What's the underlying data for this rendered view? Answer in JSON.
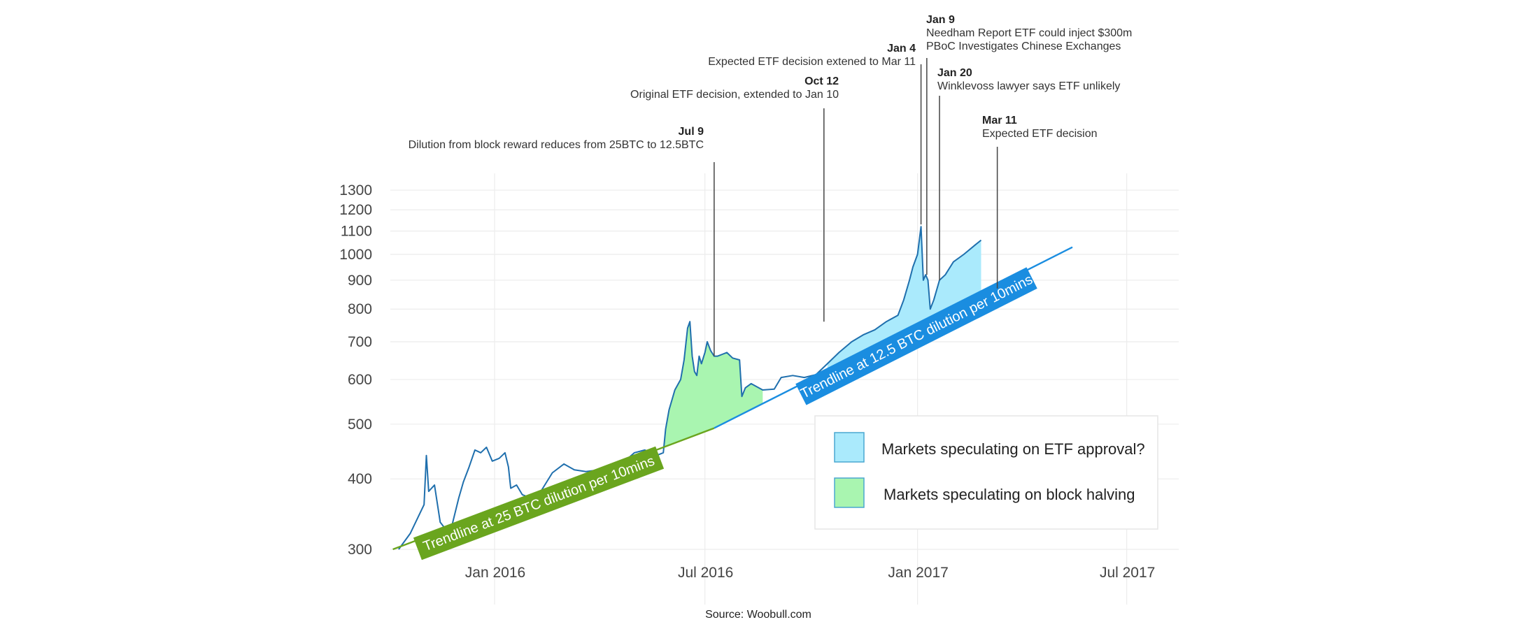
{
  "chart_data": {
    "type": "line",
    "title": "",
    "xlabel": "",
    "ylabel": "",
    "y_scale": "log",
    "xlim": [
      "2015-10-01",
      "2017-08-15"
    ],
    "ylim": [
      295,
      1400
    ],
    "grid": true,
    "x_ticks": [
      {
        "date": "2016-01-01",
        "label": "Jan 2016"
      },
      {
        "date": "2016-07-01",
        "label": "Jul 2016"
      },
      {
        "date": "2017-01-01",
        "label": "Jan 2017"
      },
      {
        "date": "2017-07-01",
        "label": "Jul 2017"
      }
    ],
    "y_ticks": [
      300,
      400,
      500,
      600,
      700,
      800,
      900,
      1000,
      1100,
      1200,
      1300
    ],
    "series": [
      {
        "role": "price",
        "color": "#1f6fad",
        "points": [
          [
            "2015-10-10",
            300
          ],
          [
            "2015-10-20",
            320
          ],
          [
            "2015-11-01",
            360
          ],
          [
            "2015-11-03",
            440
          ],
          [
            "2015-11-05",
            380
          ],
          [
            "2015-11-10",
            390
          ],
          [
            "2015-11-15",
            335
          ],
          [
            "2015-11-20",
            325
          ],
          [
            "2015-11-25",
            330
          ],
          [
            "2015-12-01",
            370
          ],
          [
            "2015-12-05",
            395
          ],
          [
            "2015-12-10",
            420
          ],
          [
            "2015-12-15",
            450
          ],
          [
            "2015-12-20",
            445
          ],
          [
            "2015-12-25",
            455
          ],
          [
            "2015-12-30",
            430
          ],
          [
            "2016-01-05",
            435
          ],
          [
            "2016-01-10",
            445
          ],
          [
            "2016-01-13",
            420
          ],
          [
            "2016-01-15",
            385
          ],
          [
            "2016-01-20",
            390
          ],
          [
            "2016-01-25",
            375
          ],
          [
            "2016-02-01",
            370
          ],
          [
            "2016-02-10",
            380
          ],
          [
            "2016-02-20",
            410
          ],
          [
            "2016-03-01",
            425
          ],
          [
            "2016-03-10",
            415
          ],
          [
            "2016-03-20",
            412
          ],
          [
            "2016-04-01",
            415
          ],
          [
            "2016-04-10",
            420
          ],
          [
            "2016-04-20",
            425
          ],
          [
            "2016-05-01",
            445
          ],
          [
            "2016-05-10",
            450
          ],
          [
            "2016-05-20",
            440
          ],
          [
            "2016-05-26",
            445
          ],
          [
            "2016-05-28",
            490
          ],
          [
            "2016-05-31",
            530
          ],
          [
            "2016-06-05",
            575
          ],
          [
            "2016-06-10",
            600
          ],
          [
            "2016-06-13",
            650
          ],
          [
            "2016-06-16",
            740
          ],
          [
            "2016-06-18",
            760
          ],
          [
            "2016-06-20",
            660
          ],
          [
            "2016-06-22",
            620
          ],
          [
            "2016-06-24",
            610
          ],
          [
            "2016-06-26",
            660
          ],
          [
            "2016-06-28",
            640
          ],
          [
            "2016-07-01",
            670
          ],
          [
            "2016-07-03",
            700
          ],
          [
            "2016-07-06",
            675
          ],
          [
            "2016-07-09",
            660
          ],
          [
            "2016-07-12",
            660
          ],
          [
            "2016-07-16",
            665
          ],
          [
            "2016-07-20",
            670
          ],
          [
            "2016-07-25",
            655
          ],
          [
            "2016-07-31",
            650
          ],
          [
            "2016-08-02",
            560
          ],
          [
            "2016-08-05",
            580
          ],
          [
            "2016-08-10",
            590
          ],
          [
            "2016-08-20",
            575
          ],
          [
            "2016-08-30",
            577
          ],
          [
            "2016-09-05",
            605
          ],
          [
            "2016-09-15",
            610
          ],
          [
            "2016-09-25",
            605
          ],
          [
            "2016-10-05",
            612
          ],
          [
            "2016-10-15",
            640
          ],
          [
            "2016-10-25",
            670
          ],
          [
            "2016-11-05",
            700
          ],
          [
            "2016-11-15",
            720
          ],
          [
            "2016-11-25",
            735
          ],
          [
            "2016-12-05",
            760
          ],
          [
            "2016-12-15",
            780
          ],
          [
            "2016-12-20",
            830
          ],
          [
            "2016-12-25",
            900
          ],
          [
            "2016-12-28",
            950
          ],
          [
            "2017-01-01",
            1000
          ],
          [
            "2017-01-04",
            1120
          ],
          [
            "2017-01-06",
            900
          ],
          [
            "2017-01-08",
            920
          ],
          [
            "2017-01-10",
            900
          ],
          [
            "2017-01-12",
            800
          ],
          [
            "2017-01-15",
            830
          ],
          [
            "2017-01-20",
            900
          ],
          [
            "2017-01-25",
            920
          ],
          [
            "2017-02-01",
            970
          ],
          [
            "2017-02-10",
            1000
          ],
          [
            "2017-02-20",
            1040
          ],
          [
            "2017-02-25",
            1060
          ]
        ]
      }
    ],
    "shaded_regions": [
      {
        "legend": "Markets speculating on block halving",
        "color": "#a9f5b0",
        "from": "2016-05-26",
        "to": "2016-08-20"
      },
      {
        "legend": "Markets speculating on ETF approval?",
        "color": "#aaeafc",
        "from": "2016-10-13",
        "to": "2017-02-25"
      }
    ],
    "trendlines": [
      {
        "label": "Trendline at 25 BTC dilution per 10mins",
        "color": "#6aa51e",
        "start": [
          "2015-10-05",
          300
        ],
        "end": [
          "2016-07-09",
          492
        ]
      },
      {
        "label": "Trendline at 12.5 BTC dilution per 10mins",
        "color": "#1a8de0",
        "start": [
          "2016-07-09",
          492
        ],
        "end": [
          "2017-05-15",
          1030
        ]
      }
    ],
    "annotations": [
      {
        "date_label": "Jul 9",
        "text": [
          "Dilution from block reward reduces from 25BTC to 12.5BTC"
        ],
        "date": "2016-07-09",
        "tip_value": 660,
        "align": "end"
      },
      {
        "date_label": "Oct 12",
        "text": [
          "Original ETF decision, extended to Jan 10"
        ],
        "date": "2016-10-12",
        "tip_value": 760,
        "align": "end"
      },
      {
        "date_label": "Jan 4",
        "text": [
          "Expected ETF decision extened to Mar 11"
        ],
        "date": "2017-01-04",
        "tip_value": 1130,
        "align": "end"
      },
      {
        "date_label": "Jan 9",
        "text": [
          "Needham Report ETF could inject $300m",
          "PBoC Investigates Chinese Exchanges"
        ],
        "date": "2017-01-09",
        "tip_value": 920,
        "align": "start"
      },
      {
        "date_label": "Jan 20",
        "text": [
          "Winklevoss lawyer says ETF unlikely"
        ],
        "date": "2017-01-20",
        "tip_value": 900,
        "align": "start"
      },
      {
        "date_label": "Mar 11",
        "text": [
          "Expected ETF decision"
        ],
        "date": "2017-03-11",
        "tip_value": 870,
        "align": "start"
      }
    ],
    "legend": {
      "position": "bottom-right",
      "entries": [
        {
          "label": "Markets speculating on ETF approval?",
          "color": "#aaeafc"
        },
        {
          "label": "Markets speculating on block halving",
          "color": "#a9f5b0"
        }
      ]
    },
    "source": "Source: Woobull.com"
  }
}
